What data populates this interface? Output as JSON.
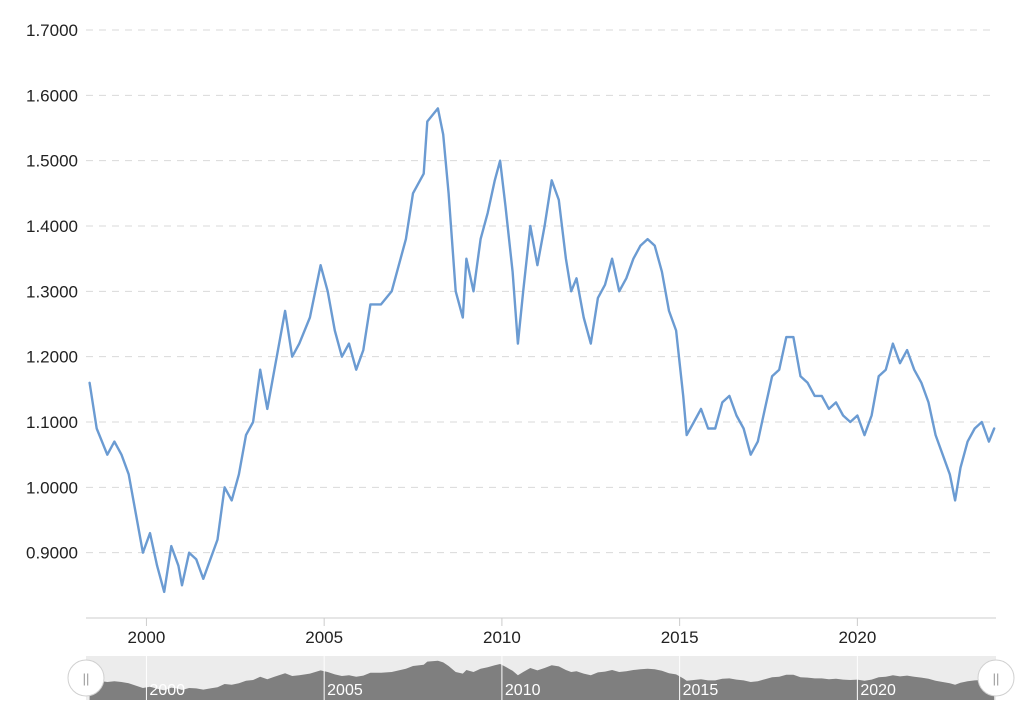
{
  "chart_data": {
    "type": "line",
    "title": "",
    "xlabel": "",
    "ylabel": "",
    "ylim": [
      0.8,
      1.7
    ],
    "xlim": [
      1998.3,
      2023.9
    ],
    "y_ticks": [
      "0.9000",
      "1.0000",
      "1.1000",
      "1.2000",
      "1.3000",
      "1.4000",
      "1.5000",
      "1.6000",
      "1.7000"
    ],
    "x_ticks": [
      "2000",
      "2005",
      "2010",
      "2015",
      "2020"
    ],
    "grid": true,
    "legend": "none",
    "colors": {
      "line": "#6b9bd2",
      "navigator_fill": "#7f7f7f",
      "navigator_bg": "#ececec"
    },
    "series": [
      {
        "values": [
          [
            1998.4,
            1.16
          ],
          [
            1998.6,
            1.09
          ],
          [
            1998.9,
            1.05
          ],
          [
            1999.1,
            1.07
          ],
          [
            1999.3,
            1.05
          ],
          [
            1999.5,
            1.02
          ],
          [
            1999.7,
            0.96
          ],
          [
            1999.9,
            0.9
          ],
          [
            2000.1,
            0.93
          ],
          [
            2000.3,
            0.88
          ],
          [
            2000.5,
            0.84
          ],
          [
            2000.7,
            0.91
          ],
          [
            2000.9,
            0.88
          ],
          [
            2001.0,
            0.85
          ],
          [
            2001.2,
            0.9
          ],
          [
            2001.4,
            0.89
          ],
          [
            2001.6,
            0.86
          ],
          [
            2001.8,
            0.89
          ],
          [
            2002.0,
            0.92
          ],
          [
            2002.2,
            1.0
          ],
          [
            2002.4,
            0.98
          ],
          [
            2002.6,
            1.02
          ],
          [
            2002.8,
            1.08
          ],
          [
            2003.0,
            1.1
          ],
          [
            2003.2,
            1.18
          ],
          [
            2003.4,
            1.12
          ],
          [
            2003.6,
            1.18
          ],
          [
            2003.9,
            1.27
          ],
          [
            2004.1,
            1.2
          ],
          [
            2004.3,
            1.22
          ],
          [
            2004.6,
            1.26
          ],
          [
            2004.9,
            1.34
          ],
          [
            2005.1,
            1.3
          ],
          [
            2005.3,
            1.24
          ],
          [
            2005.5,
            1.2
          ],
          [
            2005.7,
            1.22
          ],
          [
            2005.9,
            1.18
          ],
          [
            2006.1,
            1.21
          ],
          [
            2006.3,
            1.28
          ],
          [
            2006.6,
            1.28
          ],
          [
            2006.9,
            1.3
          ],
          [
            2007.1,
            1.34
          ],
          [
            2007.3,
            1.38
          ],
          [
            2007.5,
            1.45
          ],
          [
            2007.8,
            1.48
          ],
          [
            2007.9,
            1.56
          ],
          [
            2008.2,
            1.58
          ],
          [
            2008.35,
            1.54
          ],
          [
            2008.5,
            1.45
          ],
          [
            2008.7,
            1.3
          ],
          [
            2008.9,
            1.26
          ],
          [
            2009.0,
            1.35
          ],
          [
            2009.2,
            1.3
          ],
          [
            2009.4,
            1.38
          ],
          [
            2009.6,
            1.42
          ],
          [
            2009.8,
            1.47
          ],
          [
            2009.95,
            1.5
          ],
          [
            2010.1,
            1.43
          ],
          [
            2010.3,
            1.33
          ],
          [
            2010.45,
            1.22
          ],
          [
            2010.6,
            1.3
          ],
          [
            2010.8,
            1.4
          ],
          [
            2011.0,
            1.34
          ],
          [
            2011.2,
            1.4
          ],
          [
            2011.4,
            1.47
          ],
          [
            2011.6,
            1.44
          ],
          [
            2011.8,
            1.35
          ],
          [
            2011.95,
            1.3
          ],
          [
            2012.1,
            1.32
          ],
          [
            2012.3,
            1.26
          ],
          [
            2012.5,
            1.22
          ],
          [
            2012.7,
            1.29
          ],
          [
            2012.9,
            1.31
          ],
          [
            2013.1,
            1.35
          ],
          [
            2013.3,
            1.3
          ],
          [
            2013.5,
            1.32
          ],
          [
            2013.7,
            1.35
          ],
          [
            2013.9,
            1.37
          ],
          [
            2014.1,
            1.38
          ],
          [
            2014.3,
            1.37
          ],
          [
            2014.5,
            1.33
          ],
          [
            2014.7,
            1.27
          ],
          [
            2014.9,
            1.24
          ],
          [
            2015.1,
            1.14
          ],
          [
            2015.2,
            1.08
          ],
          [
            2015.4,
            1.1
          ],
          [
            2015.6,
            1.12
          ],
          [
            2015.8,
            1.09
          ],
          [
            2016.0,
            1.09
          ],
          [
            2016.2,
            1.13
          ],
          [
            2016.4,
            1.14
          ],
          [
            2016.6,
            1.11
          ],
          [
            2016.8,
            1.09
          ],
          [
            2017.0,
            1.05
          ],
          [
            2017.2,
            1.07
          ],
          [
            2017.4,
            1.12
          ],
          [
            2017.6,
            1.17
          ],
          [
            2017.8,
            1.18
          ],
          [
            2018.0,
            1.23
          ],
          [
            2018.2,
            1.23
          ],
          [
            2018.4,
            1.17
          ],
          [
            2018.6,
            1.16
          ],
          [
            2018.8,
            1.14
          ],
          [
            2019.0,
            1.14
          ],
          [
            2019.2,
            1.12
          ],
          [
            2019.4,
            1.13
          ],
          [
            2019.6,
            1.11
          ],
          [
            2019.8,
            1.1
          ],
          [
            2020.0,
            1.11
          ],
          [
            2020.2,
            1.08
          ],
          [
            2020.4,
            1.11
          ],
          [
            2020.6,
            1.17
          ],
          [
            2020.8,
            1.18
          ],
          [
            2021.0,
            1.22
          ],
          [
            2021.2,
            1.19
          ],
          [
            2021.4,
            1.21
          ],
          [
            2021.6,
            1.18
          ],
          [
            2021.8,
            1.16
          ],
          [
            2022.0,
            1.13
          ],
          [
            2022.2,
            1.08
          ],
          [
            2022.4,
            1.05
          ],
          [
            2022.6,
            1.02
          ],
          [
            2022.75,
            0.98
          ],
          [
            2022.9,
            1.03
          ],
          [
            2023.1,
            1.07
          ],
          [
            2023.3,
            1.09
          ],
          [
            2023.5,
            1.1
          ],
          [
            2023.7,
            1.07
          ],
          [
            2023.85,
            1.09
          ]
        ]
      }
    ]
  },
  "navigator": {
    "labels": [
      "2000",
      "2005",
      "2010",
      "2015",
      "2020"
    ],
    "left_handle_glyph": "||",
    "right_handle_glyph": "||"
  }
}
